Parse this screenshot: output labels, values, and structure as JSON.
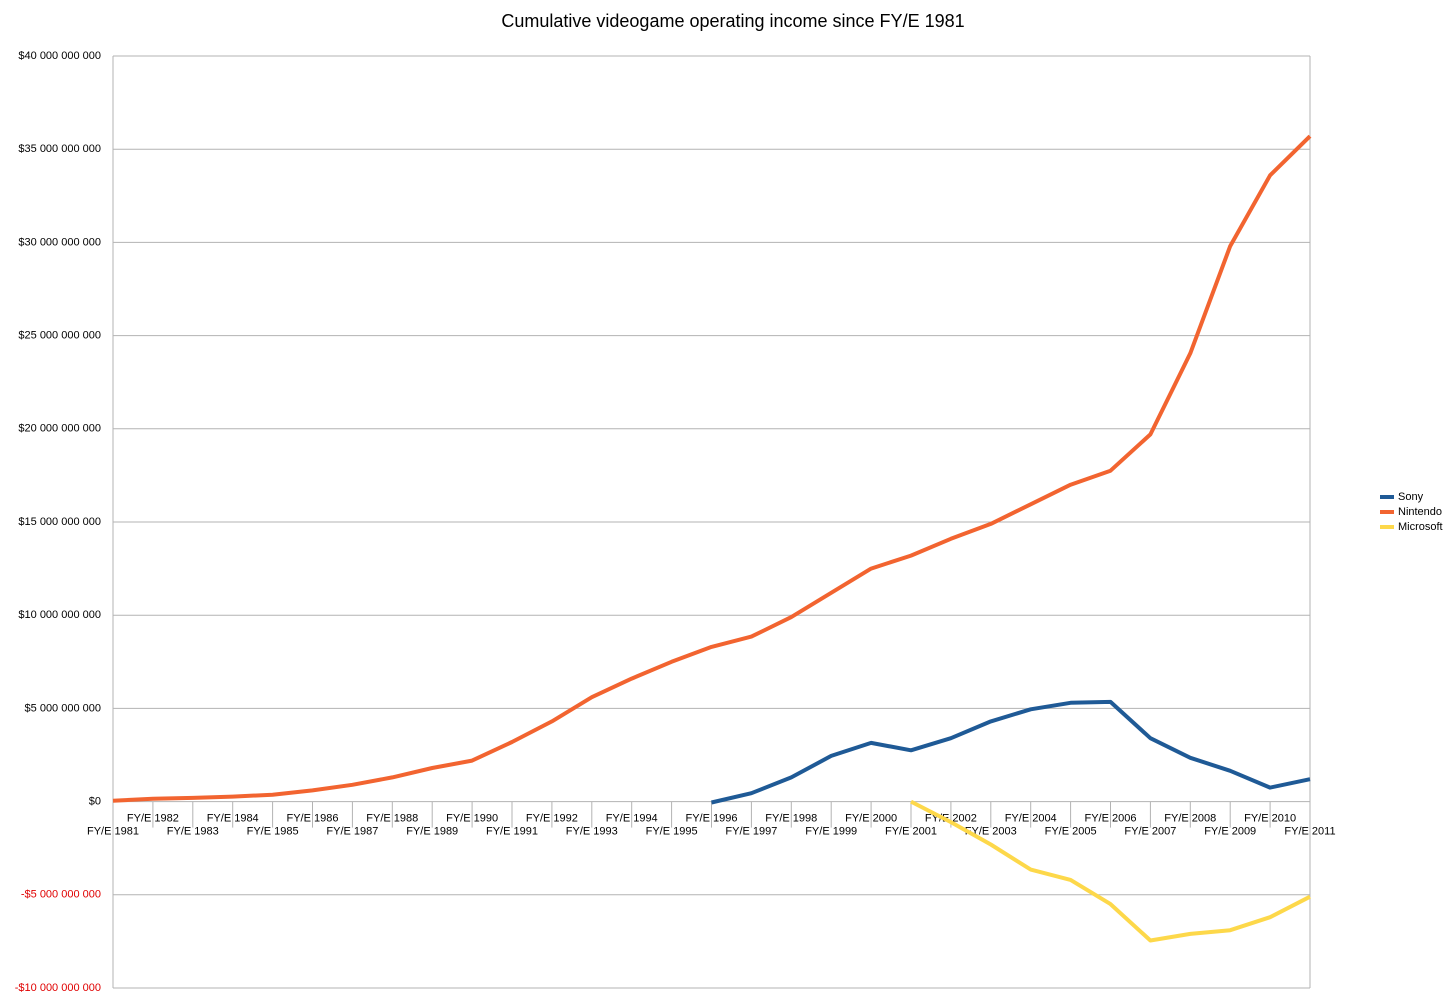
{
  "chart_data": {
    "type": "line",
    "title": "Cumulative videogame operating income since FY/E 1981",
    "categories": [
      "FY/E 1981",
      "FY/E 1982",
      "FY/E 1983",
      "FY/E 1984",
      "FY/E 1985",
      "FY/E 1986",
      "FY/E 1987",
      "FY/E 1988",
      "FY/E 1989",
      "FY/E 1990",
      "FY/E 1991",
      "FY/E 1992",
      "FY/E 1993",
      "FY/E 1994",
      "FY/E 1995",
      "FY/E 1996",
      "FY/E 1997",
      "FY/E 1998",
      "FY/E 1999",
      "FY/E 2000",
      "FY/E 2001",
      "FY/E 2002",
      "FY/E 2003",
      "FY/E 2004",
      "FY/E 2005",
      "FY/E 2006",
      "FY/E 2007",
      "FY/E 2008",
      "FY/E 2009",
      "FY/E 2010",
      "FY/E 2011"
    ],
    "series": [
      {
        "name": "Sony",
        "color": "#1f5a96",
        "values": [
          null,
          null,
          null,
          null,
          null,
          null,
          null,
          null,
          null,
          null,
          null,
          null,
          null,
          null,
          null,
          -50000000,
          450000000,
          1300000000,
          2450000000,
          3150000000,
          2750000000,
          3400000000,
          4300000000,
          4950000000,
          5300000000,
          5350000000,
          3400000000,
          2350000000,
          1650000000,
          750000000,
          1200000000
        ]
      },
      {
        "name": "Nintendo",
        "color": "#f26430",
        "values": [
          50000000,
          150000000,
          200000000,
          270000000,
          370000000,
          600000000,
          900000000,
          1300000000,
          1800000000,
          2200000000,
          3200000000,
          4300000000,
          5600000000,
          6600000000,
          7500000000,
          8300000000,
          8850000000,
          9900000000,
          11200000000,
          12500000000,
          13200000000,
          14100000000,
          14900000000,
          15950000000,
          17000000000,
          17750000000,
          19700000000,
          24050000000,
          29800000000,
          33600000000,
          35700000000
        ]
      },
      {
        "name": "Microsoft",
        "color": "#fdd84a",
        "values": [
          null,
          null,
          null,
          null,
          null,
          null,
          null,
          null,
          null,
          null,
          null,
          null,
          null,
          null,
          null,
          null,
          null,
          null,
          null,
          null,
          0,
          -1100000000,
          -2300000000,
          -3650000000,
          -4200000000,
          -5500000000,
          -7450000000,
          -7100000000,
          -6900000000,
          -6200000000,
          -5100000000
        ]
      }
    ],
    "ylim": [
      -10000000000,
      40000000000
    ],
    "yticks": [
      {
        "value": -10000000000,
        "label": "-$10 000 000 000"
      },
      {
        "value": -5000000000,
        "label": "-$5 000 000 000"
      },
      {
        "value": 0,
        "label": "$0"
      },
      {
        "value": 5000000000,
        "label": "$5 000 000 000"
      },
      {
        "value": 10000000000,
        "label": "$10 000 000 000"
      },
      {
        "value": 15000000000,
        "label": "$15 000 000 000"
      },
      {
        "value": 20000000000,
        "label": "$20 000 000 000"
      },
      {
        "value": 25000000000,
        "label": "$25 000 000 000"
      },
      {
        "value": 30000000000,
        "label": "$30 000 000 000"
      },
      {
        "value": 35000000000,
        "label": "$35 000 000 000"
      },
      {
        "value": 40000000000,
        "label": "$40 000 000 000"
      }
    ],
    "negative_tick_color": "#e00000",
    "grid": true,
    "legend": "right"
  }
}
